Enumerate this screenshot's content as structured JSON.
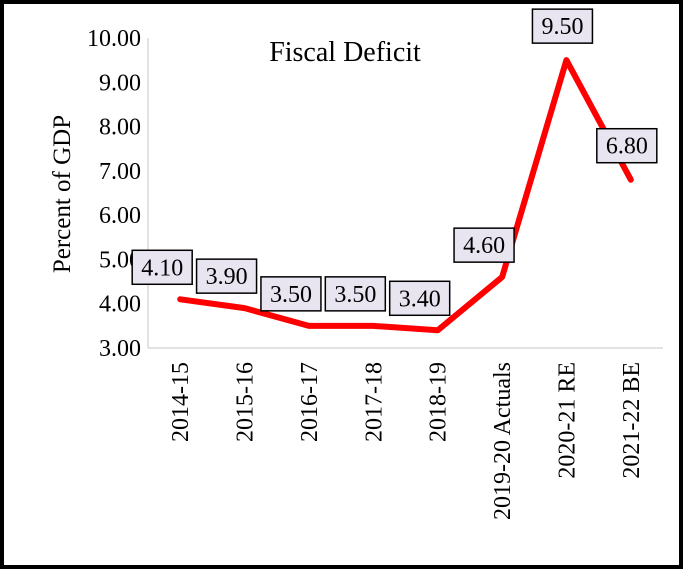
{
  "chart_data": {
    "type": "line",
    "title": "Fiscal Deficit",
    "xlabel": "",
    "ylabel": "Percent of GDP",
    "categories": [
      "2014-15",
      "2015-16",
      "2016-17",
      "2017-18",
      "2018-19",
      "2019-20 Actuals",
      "2020-21 RE",
      "2021-22 BE"
    ],
    "series": [
      {
        "values": [
          4.1,
          3.9,
          3.5,
          3.5,
          3.4,
          4.6,
          9.5,
          6.8
        ],
        "labels": [
          "4.10",
          "3.90",
          "3.50",
          "3.50",
          "3.40",
          "4.60",
          "9.50",
          "6.80"
        ],
        "color": "#ff0000"
      }
    ],
    "ylim": [
      3.0,
      10.0
    ],
    "yticks": [
      "3.00",
      "4.00",
      "5.00",
      "6.00",
      "7.00",
      "8.00",
      "9.00",
      "10.00"
    ],
    "grid": false,
    "legend": "none",
    "data_label_fill": "#e8e4f0"
  }
}
